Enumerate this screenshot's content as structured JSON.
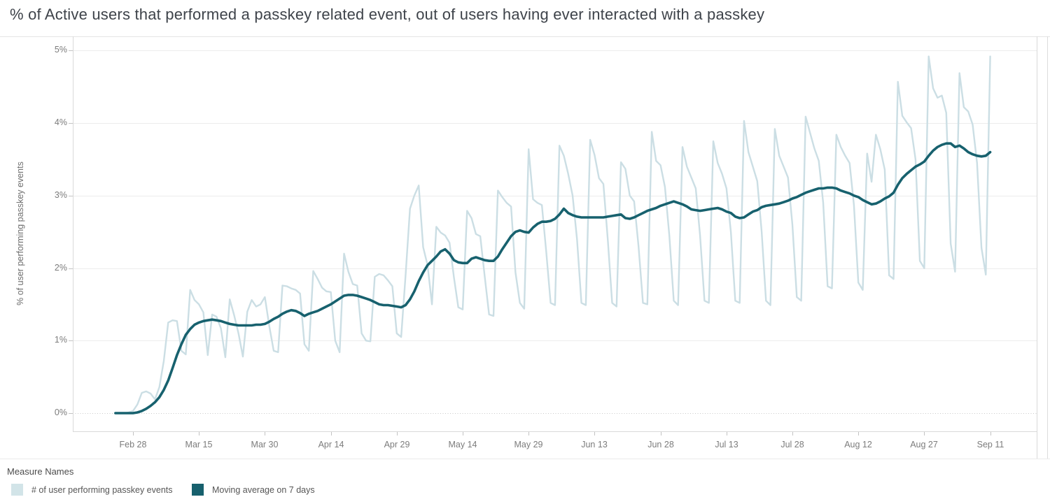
{
  "title": "% of Active users that performed a passkey related event, out of users having ever interacted with a passkey",
  "y_axis": {
    "title": "% of user performing passkey events",
    "ticks": [
      {
        "label": "0%",
        "value": 0
      },
      {
        "label": "1%",
        "value": 1
      },
      {
        "label": "2%",
        "value": 2
      },
      {
        "label": "3%",
        "value": 3
      },
      {
        "label": "4%",
        "value": 4
      },
      {
        "label": "5%",
        "value": 5
      }
    ]
  },
  "x_axis": {
    "ticks": [
      {
        "label": "Feb 28",
        "day_index": 4
      },
      {
        "label": "Mar 15",
        "day_index": 19
      },
      {
        "label": "Mar 30",
        "day_index": 34
      },
      {
        "label": "Apr 14",
        "day_index": 49
      },
      {
        "label": "Apr 29",
        "day_index": 64
      },
      {
        "label": "May 14",
        "day_index": 79
      },
      {
        "label": "May 29",
        "day_index": 94
      },
      {
        "label": "Jun 13",
        "day_index": 109
      },
      {
        "label": "Jun 28",
        "day_index": 124
      },
      {
        "label": "Jul 13",
        "day_index": 139
      },
      {
        "label": "Jul 28",
        "day_index": 154
      },
      {
        "label": "Aug 12",
        "day_index": 169
      },
      {
        "label": "Aug 27",
        "day_index": 184
      },
      {
        "label": "Sep 11",
        "day_index": 199
      }
    ]
  },
  "legend": {
    "title": "Measure Names",
    "items": [
      {
        "label": "# of user performing passkey events",
        "color": "#d2e4e8"
      },
      {
        "label": "Moving average on 7 days",
        "color": "#17606d"
      }
    ]
  },
  "chart_data": {
    "type": "line",
    "title": "% of Active users that performed a passkey related event, out of users having ever interacted with a passkey",
    "xlabel": "",
    "ylabel": "% of user performing passkey events",
    "ylim": [
      0,
      5
    ],
    "y_tick_format": "percent",
    "x_unit": "daily points, day_index 0 = first plotted day (4 days before Feb 28 tick)",
    "x_first_tick": "Feb 28",
    "x_last_tick": "Sep 11",
    "grid": "horizontal, zero line dotted",
    "legend_position": "bottom-left",
    "series": [
      {
        "name": "# of user performing passkey events",
        "color": "#cbdee4",
        "stroke_width": 2.4,
        "values": [
          0,
          0,
          0,
          0.01,
          0.03,
          0.12,
          0.28,
          0.3,
          0.27,
          0.19,
          0.36,
          0.72,
          1.25,
          1.28,
          1.27,
          0.86,
          0.81,
          1.7,
          1.56,
          1.5,
          1.39,
          0.8,
          1.36,
          1.33,
          1.17,
          0.77,
          1.57,
          1.35,
          1.1,
          0.78,
          1.4,
          1.56,
          1.47,
          1.5,
          1.6,
          1.2,
          0.86,
          0.84,
          1.76,
          1.75,
          1.72,
          1.7,
          1.65,
          0.95,
          0.86,
          1.96,
          1.85,
          1.73,
          1.68,
          1.67,
          1.0,
          0.84,
          2.2,
          1.95,
          1.78,
          1.76,
          1.1,
          1.0,
          0.99,
          1.88,
          1.92,
          1.9,
          1.83,
          1.75,
          1.1,
          1.05,
          1.9,
          2.82,
          3.0,
          3.14,
          2.29,
          2.04,
          1.5,
          2.57,
          2.49,
          2.45,
          2.35,
          1.87,
          1.46,
          1.43,
          2.79,
          2.69,
          2.47,
          2.44,
          1.89,
          1.36,
          1.34,
          3.07,
          2.98,
          2.9,
          2.85,
          1.94,
          1.52,
          1.44,
          3.64,
          2.95,
          2.9,
          2.87,
          2.23,
          1.52,
          1.49,
          3.69,
          3.55,
          3.3,
          3.0,
          2.4,
          1.52,
          1.49,
          3.77,
          3.56,
          3.24,
          3.16,
          2.39,
          1.52,
          1.47,
          3.46,
          3.37,
          3.0,
          2.92,
          2.3,
          1.52,
          1.5,
          3.88,
          3.48,
          3.42,
          3.12,
          2.45,
          1.55,
          1.49,
          3.67,
          3.4,
          3.25,
          3.1,
          2.45,
          1.55,
          1.52,
          3.75,
          3.45,
          3.3,
          3.1,
          2.5,
          1.55,
          1.52,
          4.03,
          3.6,
          3.4,
          3.2,
          2.5,
          1.55,
          1.49,
          3.92,
          3.55,
          3.4,
          3.25,
          2.6,
          1.6,
          1.55,
          4.09,
          3.87,
          3.65,
          3.48,
          2.9,
          1.75,
          1.72,
          3.84,
          3.67,
          3.55,
          3.45,
          2.87,
          1.8,
          1.7,
          3.58,
          3.19,
          3.84,
          3.64,
          3.36,
          1.9,
          1.85,
          4.57,
          4.1,
          4.01,
          3.93,
          3.5,
          2.1,
          2.0,
          4.92,
          4.48,
          4.35,
          4.38,
          4.14,
          2.34,
          1.95,
          4.69,
          4.22,
          4.16,
          3.98,
          3.45,
          2.28,
          1.91,
          4.92
        ]
      },
      {
        "name": "Moving average on 7 days",
        "color": "#17616e",
        "stroke_width": 3.6,
        "values": [
          0,
          0,
          0,
          0,
          0,
          0.01,
          0.03,
          0.06,
          0.1,
          0.15,
          0.22,
          0.32,
          0.45,
          0.62,
          0.8,
          0.95,
          1.08,
          1.16,
          1.22,
          1.25,
          1.27,
          1.28,
          1.29,
          1.28,
          1.27,
          1.25,
          1.23,
          1.22,
          1.21,
          1.21,
          1.21,
          1.21,
          1.22,
          1.22,
          1.23,
          1.26,
          1.3,
          1.33,
          1.37,
          1.4,
          1.42,
          1.41,
          1.38,
          1.34,
          1.37,
          1.39,
          1.41,
          1.44,
          1.47,
          1.5,
          1.54,
          1.58,
          1.62,
          1.63,
          1.63,
          1.62,
          1.6,
          1.58,
          1.56,
          1.53,
          1.5,
          1.49,
          1.49,
          1.48,
          1.47,
          1.46,
          1.49,
          1.57,
          1.68,
          1.82,
          1.94,
          2.04,
          2.1,
          2.16,
          2.23,
          2.26,
          2.2,
          2.11,
          2.08,
          2.07,
          2.07,
          2.13,
          2.15,
          2.13,
          2.11,
          2.1,
          2.1,
          2.16,
          2.26,
          2.35,
          2.44,
          2.5,
          2.52,
          2.5,
          2.49,
          2.56,
          2.61,
          2.64,
          2.64,
          2.65,
          2.68,
          2.74,
          2.82,
          2.76,
          2.73,
          2.71,
          2.7,
          2.7,
          2.7,
          2.7,
          2.7,
          2.7,
          2.71,
          2.72,
          2.73,
          2.74,
          2.69,
          2.68,
          2.7,
          2.73,
          2.76,
          2.79,
          2.81,
          2.83,
          2.86,
          2.88,
          2.9,
          2.92,
          2.9,
          2.88,
          2.85,
          2.81,
          2.8,
          2.79,
          2.8,
          2.81,
          2.82,
          2.83,
          2.81,
          2.78,
          2.76,
          2.71,
          2.69,
          2.7,
          2.74,
          2.78,
          2.8,
          2.84,
          2.86,
          2.87,
          2.88,
          2.89,
          2.91,
          2.93,
          2.96,
          2.98,
          3.01,
          3.04,
          3.06,
          3.08,
          3.1,
          3.1,
          3.11,
          3.11,
          3.1,
          3.07,
          3.05,
          3.03,
          3.0,
          2.98,
          2.94,
          2.91,
          2.88,
          2.89,
          2.92,
          2.96,
          2.99,
          3.04,
          3.15,
          3.24,
          3.3,
          3.35,
          3.4,
          3.43,
          3.47,
          3.55,
          3.62,
          3.67,
          3.7,
          3.72,
          3.72,
          3.67,
          3.69,
          3.65,
          3.6,
          3.57,
          3.55,
          3.54,
          3.55,
          3.6
        ]
      }
    ]
  }
}
